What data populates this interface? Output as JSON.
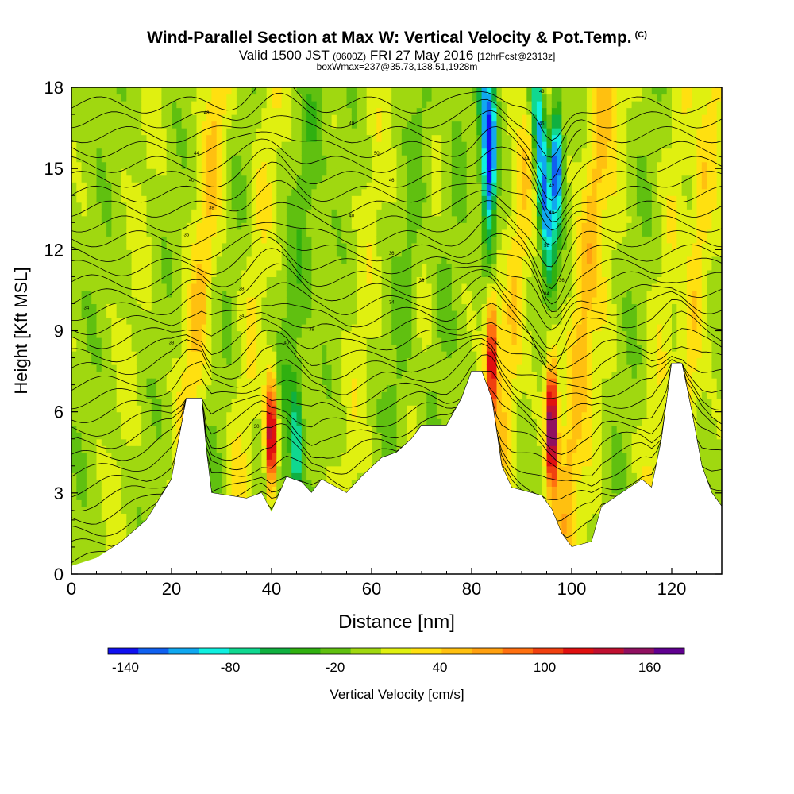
{
  "header": {
    "title": "Wind-Parallel Section at Max W: Vertical Velocity & Pot.Temp.",
    "copyright": "(C)",
    "valid_prefix": "Valid 1500 JST",
    "valid_utc": "(0600Z)",
    "valid_date": "FRI 27 May 2016",
    "forecast": "[12hrFcst@2313z]",
    "box_info": "boxWmax=237@35.73,138.51,1928m"
  },
  "chart_data": {
    "type": "heatmap",
    "xlabel": "Distance [nm]",
    "ylabel": "Height [Kft MSL]",
    "xlim": [
      0,
      130
    ],
    "ylim": [
      0,
      18
    ],
    "x_ticks": [
      "0",
      "20",
      "40",
      "60",
      "80",
      "100",
      "120"
    ],
    "y_ticks": [
      "0",
      "3",
      "6",
      "9",
      "12",
      "15",
      "18"
    ],
    "colorbar": {
      "label": "Vertical Velocity [cm/s]",
      "tick_labels": [
        "-140",
        "-80",
        "-20",
        "40",
        "100",
        "160"
      ],
      "tick_values": [
        -140,
        -80,
        -20,
        40,
        100,
        160
      ],
      "vmin": -150,
      "vmax": 180,
      "colors": [
        "#1010f0",
        "#1060f0",
        "#10a8f0",
        "#10f0e0",
        "#10d890",
        "#10b040",
        "#30b010",
        "#60c010",
        "#a0d810",
        "#e0f010",
        "#ffe010",
        "#ffc010",
        "#ffa010",
        "#ff7010",
        "#f04010",
        "#e01010",
        "#c01030",
        "#901060",
        "#600090"
      ]
    },
    "terrain_kft": [
      [
        0,
        0.3
      ],
      [
        5,
        0.6
      ],
      [
        10,
        1.2
      ],
      [
        15,
        2.0
      ],
      [
        20,
        3.5
      ],
      [
        22,
        5.5
      ],
      [
        23,
        6.5
      ],
      [
        26,
        6.5
      ],
      [
        27,
        4.5
      ],
      [
        28,
        3.0
      ],
      [
        35,
        2.8
      ],
      [
        38,
        3.0
      ],
      [
        40,
        2.3
      ],
      [
        43,
        3.6
      ],
      [
        46,
        3.4
      ],
      [
        48,
        3.0
      ],
      [
        50,
        3.5
      ],
      [
        55,
        3.0
      ],
      [
        58,
        3.6
      ],
      [
        62,
        4.3
      ],
      [
        65,
        4.5
      ],
      [
        68,
        5.0
      ],
      [
        70,
        5.5
      ],
      [
        75,
        5.5
      ],
      [
        78,
        6.5
      ],
      [
        80,
        7.5
      ],
      [
        82,
        7.5
      ],
      [
        84,
        6.5
      ],
      [
        86,
        4.0
      ],
      [
        88,
        3.2
      ],
      [
        92,
        3.0
      ],
      [
        94,
        2.9
      ],
      [
        96,
        2.4
      ],
      [
        98,
        1.5
      ],
      [
        100,
        1.0
      ],
      [
        104,
        1.2
      ],
      [
        106,
        2.5
      ],
      [
        110,
        3.0
      ],
      [
        114,
        3.5
      ],
      [
        116,
        3.2
      ],
      [
        118,
        5.0
      ],
      [
        120,
        7.8
      ],
      [
        122,
        7.8
      ],
      [
        124,
        6.0
      ],
      [
        126,
        4.0
      ],
      [
        128,
        3.0
      ],
      [
        130,
        2.5
      ]
    ],
    "wmax_features": [
      {
        "x": 40,
        "z": 5.0,
        "value": 160
      },
      {
        "x": 84,
        "z": 8.0,
        "value": 130
      },
      {
        "x": 96,
        "z": 5.5,
        "value": 180
      },
      {
        "x": 97,
        "z": 15.0,
        "value": -140
      },
      {
        "x": 84,
        "z": 16.0,
        "value": -110
      },
      {
        "x": 45,
        "z": 4.5,
        "value": -80
      }
    ],
    "theta_labels": [
      {
        "x": 27,
        "z": 17.0,
        "text": "48"
      },
      {
        "x": 25,
        "z": 15.5,
        "text": "44"
      },
      {
        "x": 24,
        "z": 14.5,
        "text": "40"
      },
      {
        "x": 28,
        "z": 13.5,
        "text": "38"
      },
      {
        "x": 23,
        "z": 12.5,
        "text": "36"
      },
      {
        "x": 3,
        "z": 9.8,
        "text": "34"
      },
      {
        "x": 34,
        "z": 10.5,
        "text": "38"
      },
      {
        "x": 34,
        "z": 9.5,
        "text": "34"
      },
      {
        "x": 20,
        "z": 8.5,
        "text": "38"
      },
      {
        "x": 43,
        "z": 8.5,
        "text": "40"
      },
      {
        "x": 48,
        "z": 9.0,
        "text": "38"
      },
      {
        "x": 37,
        "z": 5.4,
        "text": "30"
      },
      {
        "x": 56,
        "z": 16.6,
        "text": "48"
      },
      {
        "x": 61,
        "z": 15.5,
        "text": "50"
      },
      {
        "x": 64,
        "z": 14.5,
        "text": "46"
      },
      {
        "x": 56,
        "z": 13.2,
        "text": "40"
      },
      {
        "x": 64,
        "z": 11.8,
        "text": "36"
      },
      {
        "x": 70,
        "z": 10.8,
        "text": "36"
      },
      {
        "x": 64,
        "z": 10.0,
        "text": "34"
      },
      {
        "x": 94,
        "z": 17.8,
        "text": "48"
      },
      {
        "x": 94,
        "z": 16.6,
        "text": "46"
      },
      {
        "x": 91,
        "z": 15.3,
        "text": "44"
      },
      {
        "x": 96,
        "z": 14.3,
        "text": "42"
      },
      {
        "x": 96,
        "z": 13.3,
        "text": "40"
      },
      {
        "x": 95,
        "z": 12.1,
        "text": "38"
      },
      {
        "x": 98,
        "z": 10.8,
        "text": "36"
      },
      {
        "x": 95,
        "z": 10.3,
        "text": "34"
      },
      {
        "x": 85,
        "z": 8.5,
        "text": "32"
      }
    ]
  }
}
